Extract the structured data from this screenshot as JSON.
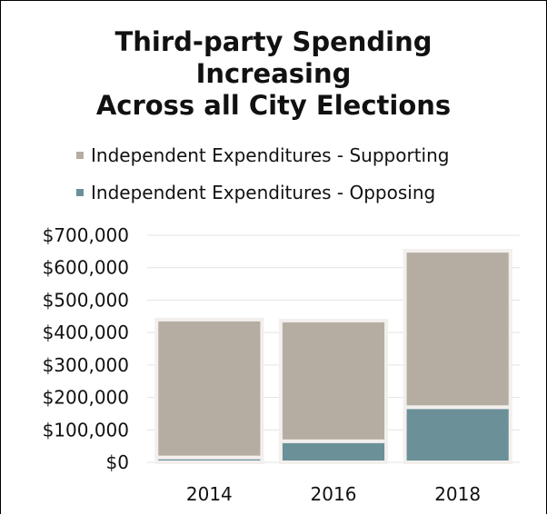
{
  "chart_data": {
    "type": "bar",
    "stacked": true,
    "title_lines": [
      "Third-party Spending",
      "Increasing",
      "Across all City Elections"
    ],
    "categories": [
      "2014",
      "2016",
      "2018"
    ],
    "series": [
      {
        "name": "Independent Expenditures - Opposing",
        "values": [
          15000,
          65000,
          170000
        ],
        "color": "#6b9098"
      },
      {
        "name": "Independent Expenditures - Supporting",
        "values": [
          425000,
          372000,
          482000
        ],
        "color": "#b5ada2"
      }
    ],
    "legend_order": [
      1,
      0
    ],
    "ylim": [
      0,
      700000
    ],
    "yticks": [
      "$0",
      "$100,000",
      "$200,000",
      "$300,000",
      "$400,000",
      "$500,000",
      "$600,000",
      "$700,000"
    ],
    "grid": true,
    "legend_position": "top",
    "xlabel": "",
    "ylabel": ""
  }
}
